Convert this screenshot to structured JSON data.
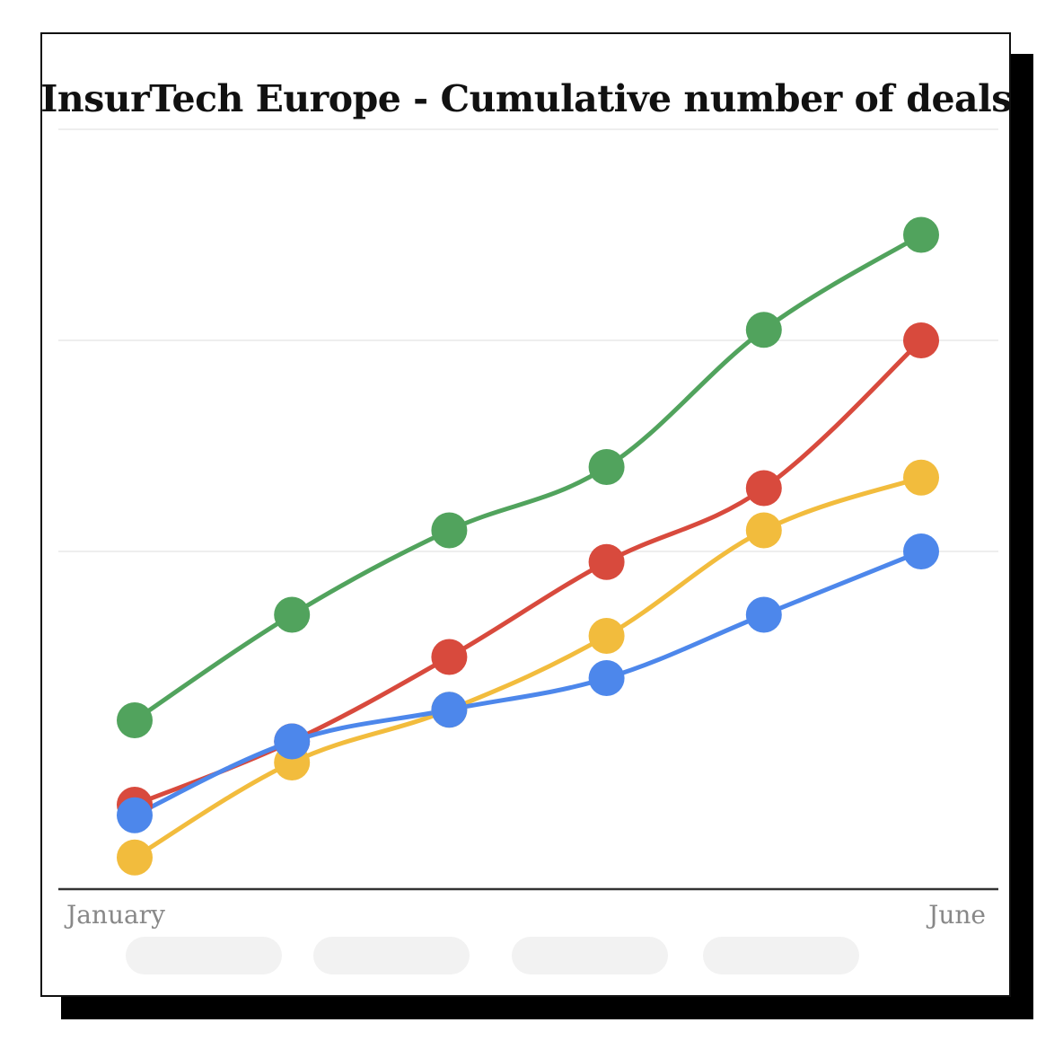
{
  "chart_data": {
    "type": "line",
    "title": "InsurTech Europe - Cumulative number of deals",
    "x_tick_labels": [
      "January",
      "June"
    ],
    "x": [
      1,
      2,
      3,
      4,
      5,
      6
    ],
    "ylim": [
      0,
      100
    ],
    "grid": true,
    "gridlines": [
      32,
      52,
      72
    ],
    "legend": "bottom",
    "series": [
      {
        "color": "#51a35d",
        "values": [
          16,
          26,
          34,
          40,
          53,
          62
        ]
      },
      {
        "color": "#d84a3d",
        "values": [
          8,
          14,
          22,
          31,
          38,
          52
        ]
      },
      {
        "color": "#f2bc3d",
        "values": [
          3,
          12,
          17,
          24,
          34,
          39
        ]
      },
      {
        "color": "#4d87eb",
        "values": [
          7,
          14,
          17,
          20,
          26,
          32
        ]
      }
    ]
  }
}
